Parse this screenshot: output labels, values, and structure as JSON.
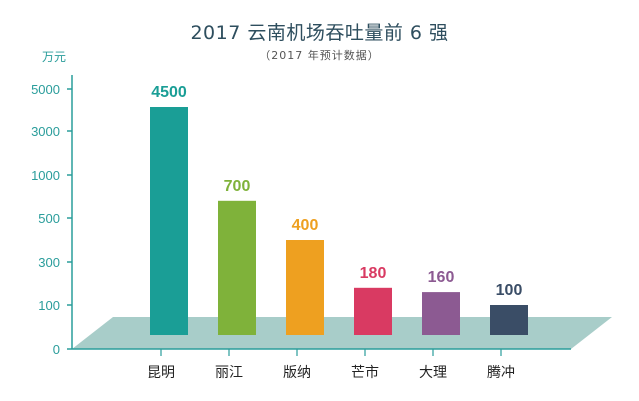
{
  "chart_data": {
    "type": "bar",
    "title": "2017 云南机场吞吐量前 6 强",
    "subtitle": "（2017 年预计数据）",
    "ylabel": "万元",
    "categories": [
      "昆明",
      "丽江",
      "版纳",
      "芒市",
      "大理",
      "腾冲"
    ],
    "values": [
      4500,
      700,
      400,
      180,
      160,
      100
    ],
    "bar_colors": [
      "#1a9e96",
      "#7fb23a",
      "#eea020",
      "#d93a62",
      "#8c5a92",
      "#3a4d66"
    ],
    "yticks": [
      0,
      100,
      300,
      500,
      1000,
      3000,
      5000
    ],
    "grid": false,
    "legend": "none",
    "colors": {
      "axis": "#2a9d9b",
      "floor": "#a8cdc9",
      "title": "#2e4e5e"
    }
  }
}
